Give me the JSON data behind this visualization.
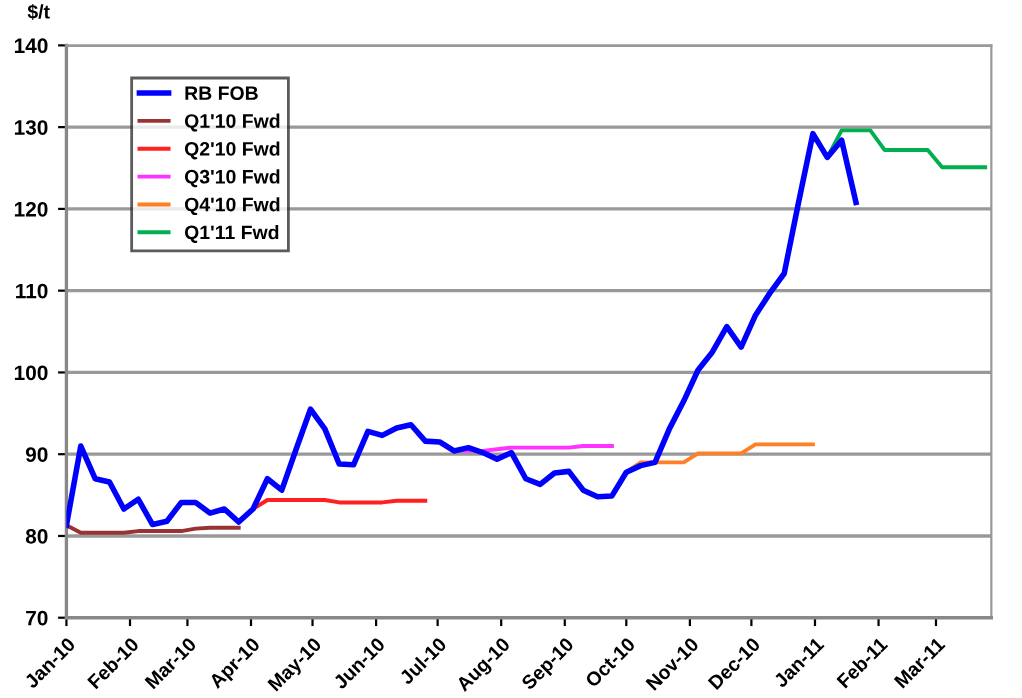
{
  "chart_data": {
    "type": "line",
    "ylabel": "$/t",
    "series": [
      {
        "name": "RB FOB",
        "color": "#0000ff",
        "x": [
          "2010-01-01",
          "2010-01-08",
          "2010-01-15",
          "2010-01-22",
          "2010-01-29",
          "2010-02-05",
          "2010-02-12",
          "2010-02-19",
          "2010-02-26",
          "2010-03-05",
          "2010-03-12",
          "2010-03-19",
          "2010-03-26",
          "2010-04-02",
          "2010-04-09",
          "2010-04-16",
          "2010-04-23",
          "2010-04-30",
          "2010-05-07",
          "2010-05-14",
          "2010-05-21",
          "2010-05-28",
          "2010-06-04",
          "2010-06-11",
          "2010-06-18",
          "2010-06-25",
          "2010-07-02",
          "2010-07-09",
          "2010-07-16",
          "2010-07-23",
          "2010-07-30",
          "2010-08-06",
          "2010-08-13",
          "2010-08-20",
          "2010-08-27",
          "2010-09-03",
          "2010-09-10",
          "2010-09-17",
          "2010-09-24",
          "2010-10-01",
          "2010-10-08",
          "2010-10-15",
          "2010-10-22",
          "2010-10-29",
          "2010-11-05",
          "2010-11-12",
          "2010-11-19",
          "2010-11-26",
          "2010-12-03",
          "2010-12-10",
          "2010-12-17",
          "2010-12-24",
          "2010-12-31",
          "2011-01-07",
          "2011-01-14",
          "2011-01-21"
        ],
        "values": [
          81.3,
          91.0,
          87.0,
          86.6,
          83.3,
          84.5,
          81.4,
          81.8,
          84.1,
          84.1,
          82.8,
          83.3,
          81.7,
          83.3,
          87.0,
          85.6,
          90.6,
          95.5,
          93.1,
          88.8,
          88.7,
          92.8,
          92.3,
          93.2,
          93.6,
          91.6,
          91.5,
          90.4,
          90.8,
          90.2,
          89.4,
          90.2,
          87.0,
          86.3,
          87.7,
          87.9,
          85.6,
          84.8,
          84.9,
          87.8,
          88.6,
          89.0,
          93.1,
          96.5,
          100.3,
          102.5,
          105.6,
          103.1,
          107.0,
          109.7,
          112.1,
          120.8,
          129.2,
          126.3,
          128.4,
          120.8
        ]
      },
      {
        "name": "Q1'10 Fwd",
        "color": "#993333",
        "x": [
          "2010-01-01",
          "2010-01-08",
          "2010-01-15",
          "2010-01-22",
          "2010-01-29",
          "2010-02-05",
          "2010-02-12",
          "2010-02-19",
          "2010-02-26",
          "2010-03-05",
          "2010-03-12",
          "2010-03-19",
          "2010-03-26"
        ],
        "values": [
          81.3,
          80.4,
          80.4,
          80.4,
          80.4,
          80.6,
          80.6,
          80.6,
          80.6,
          80.9,
          81.0,
          81.0,
          81.0
        ]
      },
      {
        "name": "Q2'10 Fwd",
        "color": "#ff2020",
        "x": [
          "2010-04-02",
          "2010-04-09",
          "2010-04-16",
          "2010-04-23",
          "2010-04-30",
          "2010-05-07",
          "2010-05-14",
          "2010-05-21",
          "2010-05-28",
          "2010-06-04",
          "2010-06-11",
          "2010-06-18",
          "2010-06-25"
        ],
        "values": [
          83.3,
          84.4,
          84.4,
          84.4,
          84.4,
          84.4,
          84.1,
          84.1,
          84.1,
          84.1,
          84.3,
          84.3,
          84.3
        ]
      },
      {
        "name": "Q3'10 Fwd",
        "color": "#ff33ff",
        "x": [
          "2010-07-09",
          "2010-07-16",
          "2010-07-23",
          "2010-07-30",
          "2010-08-06",
          "2010-08-13",
          "2010-08-20",
          "2010-08-27",
          "2010-09-03",
          "2010-09-10",
          "2010-09-17",
          "2010-09-24"
        ],
        "values": [
          90.4,
          90.4,
          90.4,
          90.6,
          90.8,
          90.8,
          90.8,
          90.8,
          90.8,
          91.0,
          91.0,
          91.0
        ]
      },
      {
        "name": "Q4'10 Fwd",
        "color": "#ff7f27",
        "x": [
          "2010-10-01",
          "2010-10-08",
          "2010-10-15",
          "2010-10-22",
          "2010-10-29",
          "2010-11-05",
          "2010-11-12",
          "2010-11-19",
          "2010-11-26",
          "2010-12-03",
          "2010-12-10",
          "2010-12-17",
          "2010-12-24",
          "2010-12-31"
        ],
        "values": [
          87.8,
          89.0,
          89.0,
          89.0,
          89.0,
          90.1,
          90.1,
          90.1,
          90.1,
          91.2,
          91.2,
          91.2,
          91.2,
          91.2
        ]
      },
      {
        "name": "Q1'11 Fwd",
        "color": "#00b050",
        "x": [
          "2011-01-07",
          "2011-01-14",
          "2011-01-21",
          "2011-01-28",
          "2011-02-04",
          "2011-02-11",
          "2011-02-18",
          "2011-02-25",
          "2011-03-04",
          "2011-03-11",
          "2011-03-18",
          "2011-03-25"
        ],
        "values": [
          126.3,
          129.6,
          129.6,
          129.6,
          127.2,
          127.2,
          127.2,
          127.2,
          125.1,
          125.1,
          125.1,
          125.1
        ]
      }
    ],
    "xlim": [
      "2010-01-01",
      "2011-03-28"
    ],
    "xticks": [
      {
        "value": "2010-01-01",
        "label": "Jan-10"
      },
      {
        "value": "2010-02-01",
        "label": "Feb-10"
      },
      {
        "value": "2010-03-01",
        "label": "Mar-10"
      },
      {
        "value": "2010-04-01",
        "label": "Apr-10"
      },
      {
        "value": "2010-05-01",
        "label": "May-10"
      },
      {
        "value": "2010-06-01",
        "label": "Jun-10"
      },
      {
        "value": "2010-07-01",
        "label": "Jul-10"
      },
      {
        "value": "2010-08-01",
        "label": "Aug-10"
      },
      {
        "value": "2010-09-01",
        "label": "Sep-10"
      },
      {
        "value": "2010-10-01",
        "label": "Oct-10"
      },
      {
        "value": "2010-11-01",
        "label": "Nov-10"
      },
      {
        "value": "2010-12-01",
        "label": "Dec-10"
      },
      {
        "value": "2011-01-01",
        "label": "Jan-11"
      },
      {
        "value": "2011-02-01",
        "label": "Feb-11"
      },
      {
        "value": "2011-03-01",
        "label": "Mar-11"
      }
    ],
    "ylim": [
      70,
      140
    ],
    "yticks": [
      70,
      80,
      90,
      100,
      110,
      120,
      130,
      140
    ],
    "grid": "y",
    "legend": "top left",
    "marker": "none",
    "line_style": "solid"
  }
}
